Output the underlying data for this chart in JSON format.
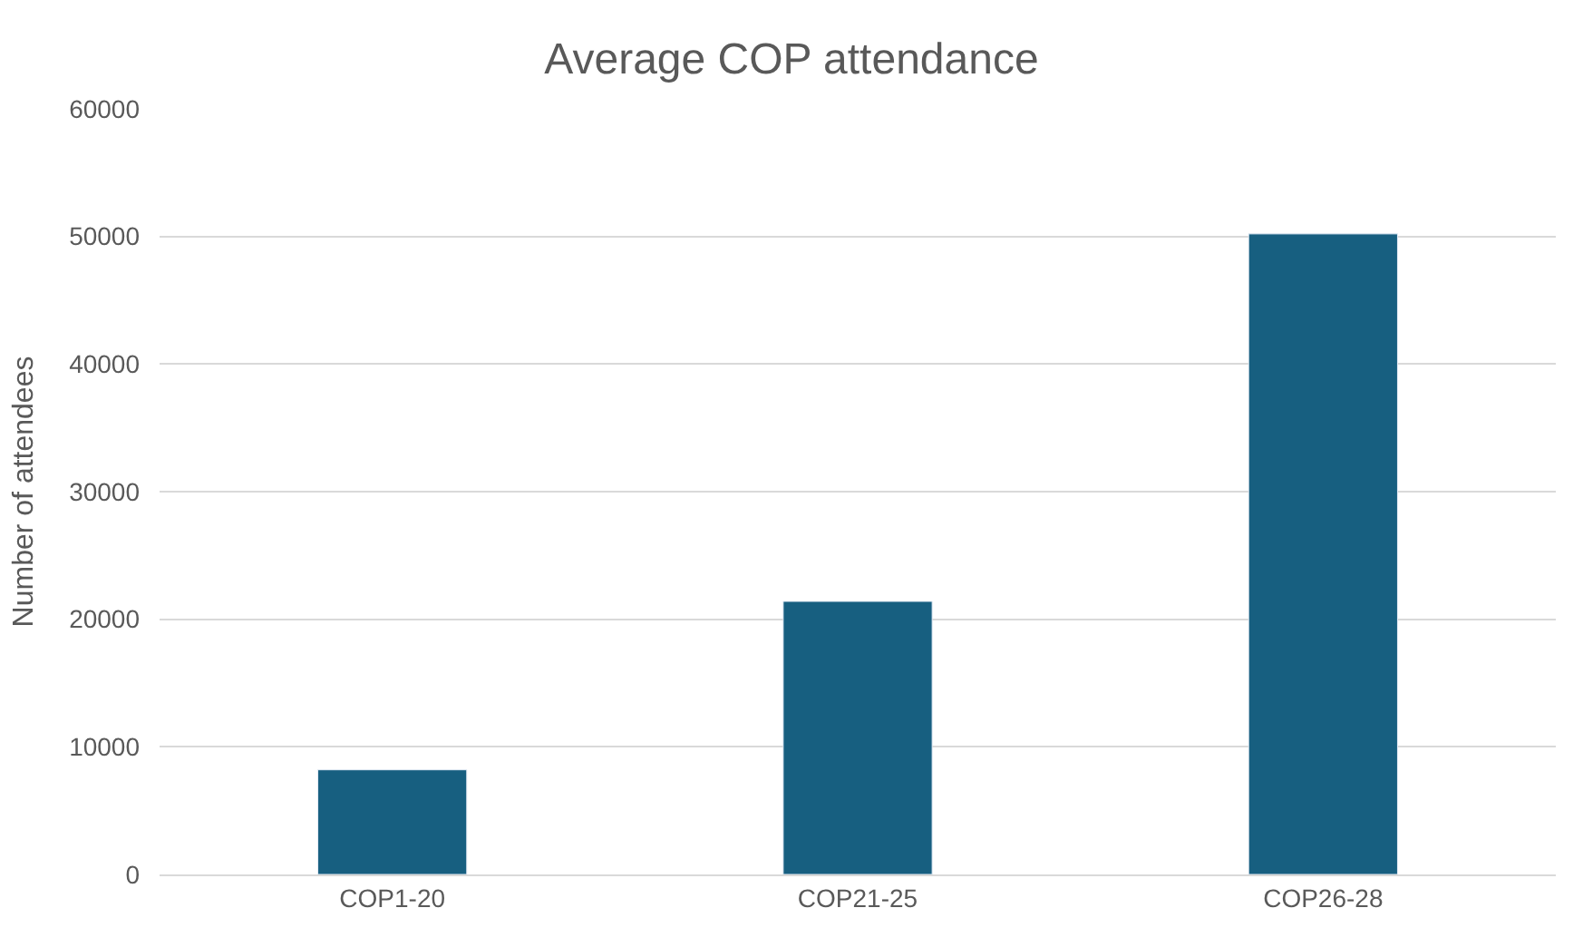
{
  "chart_data": {
    "type": "bar",
    "title": "Average COP attendance",
    "ylabel": "Number of attendees",
    "categories": [
      "COP1-20",
      "COP21-25",
      "COP26-28"
    ],
    "values": [
      8200,
      21400,
      50200
    ],
    "color": "#175f80",
    "ylim": [
      0,
      60000
    ],
    "yticks": [
      0,
      10000,
      20000,
      30000,
      40000,
      50000,
      60000
    ],
    "grid": "y"
  }
}
